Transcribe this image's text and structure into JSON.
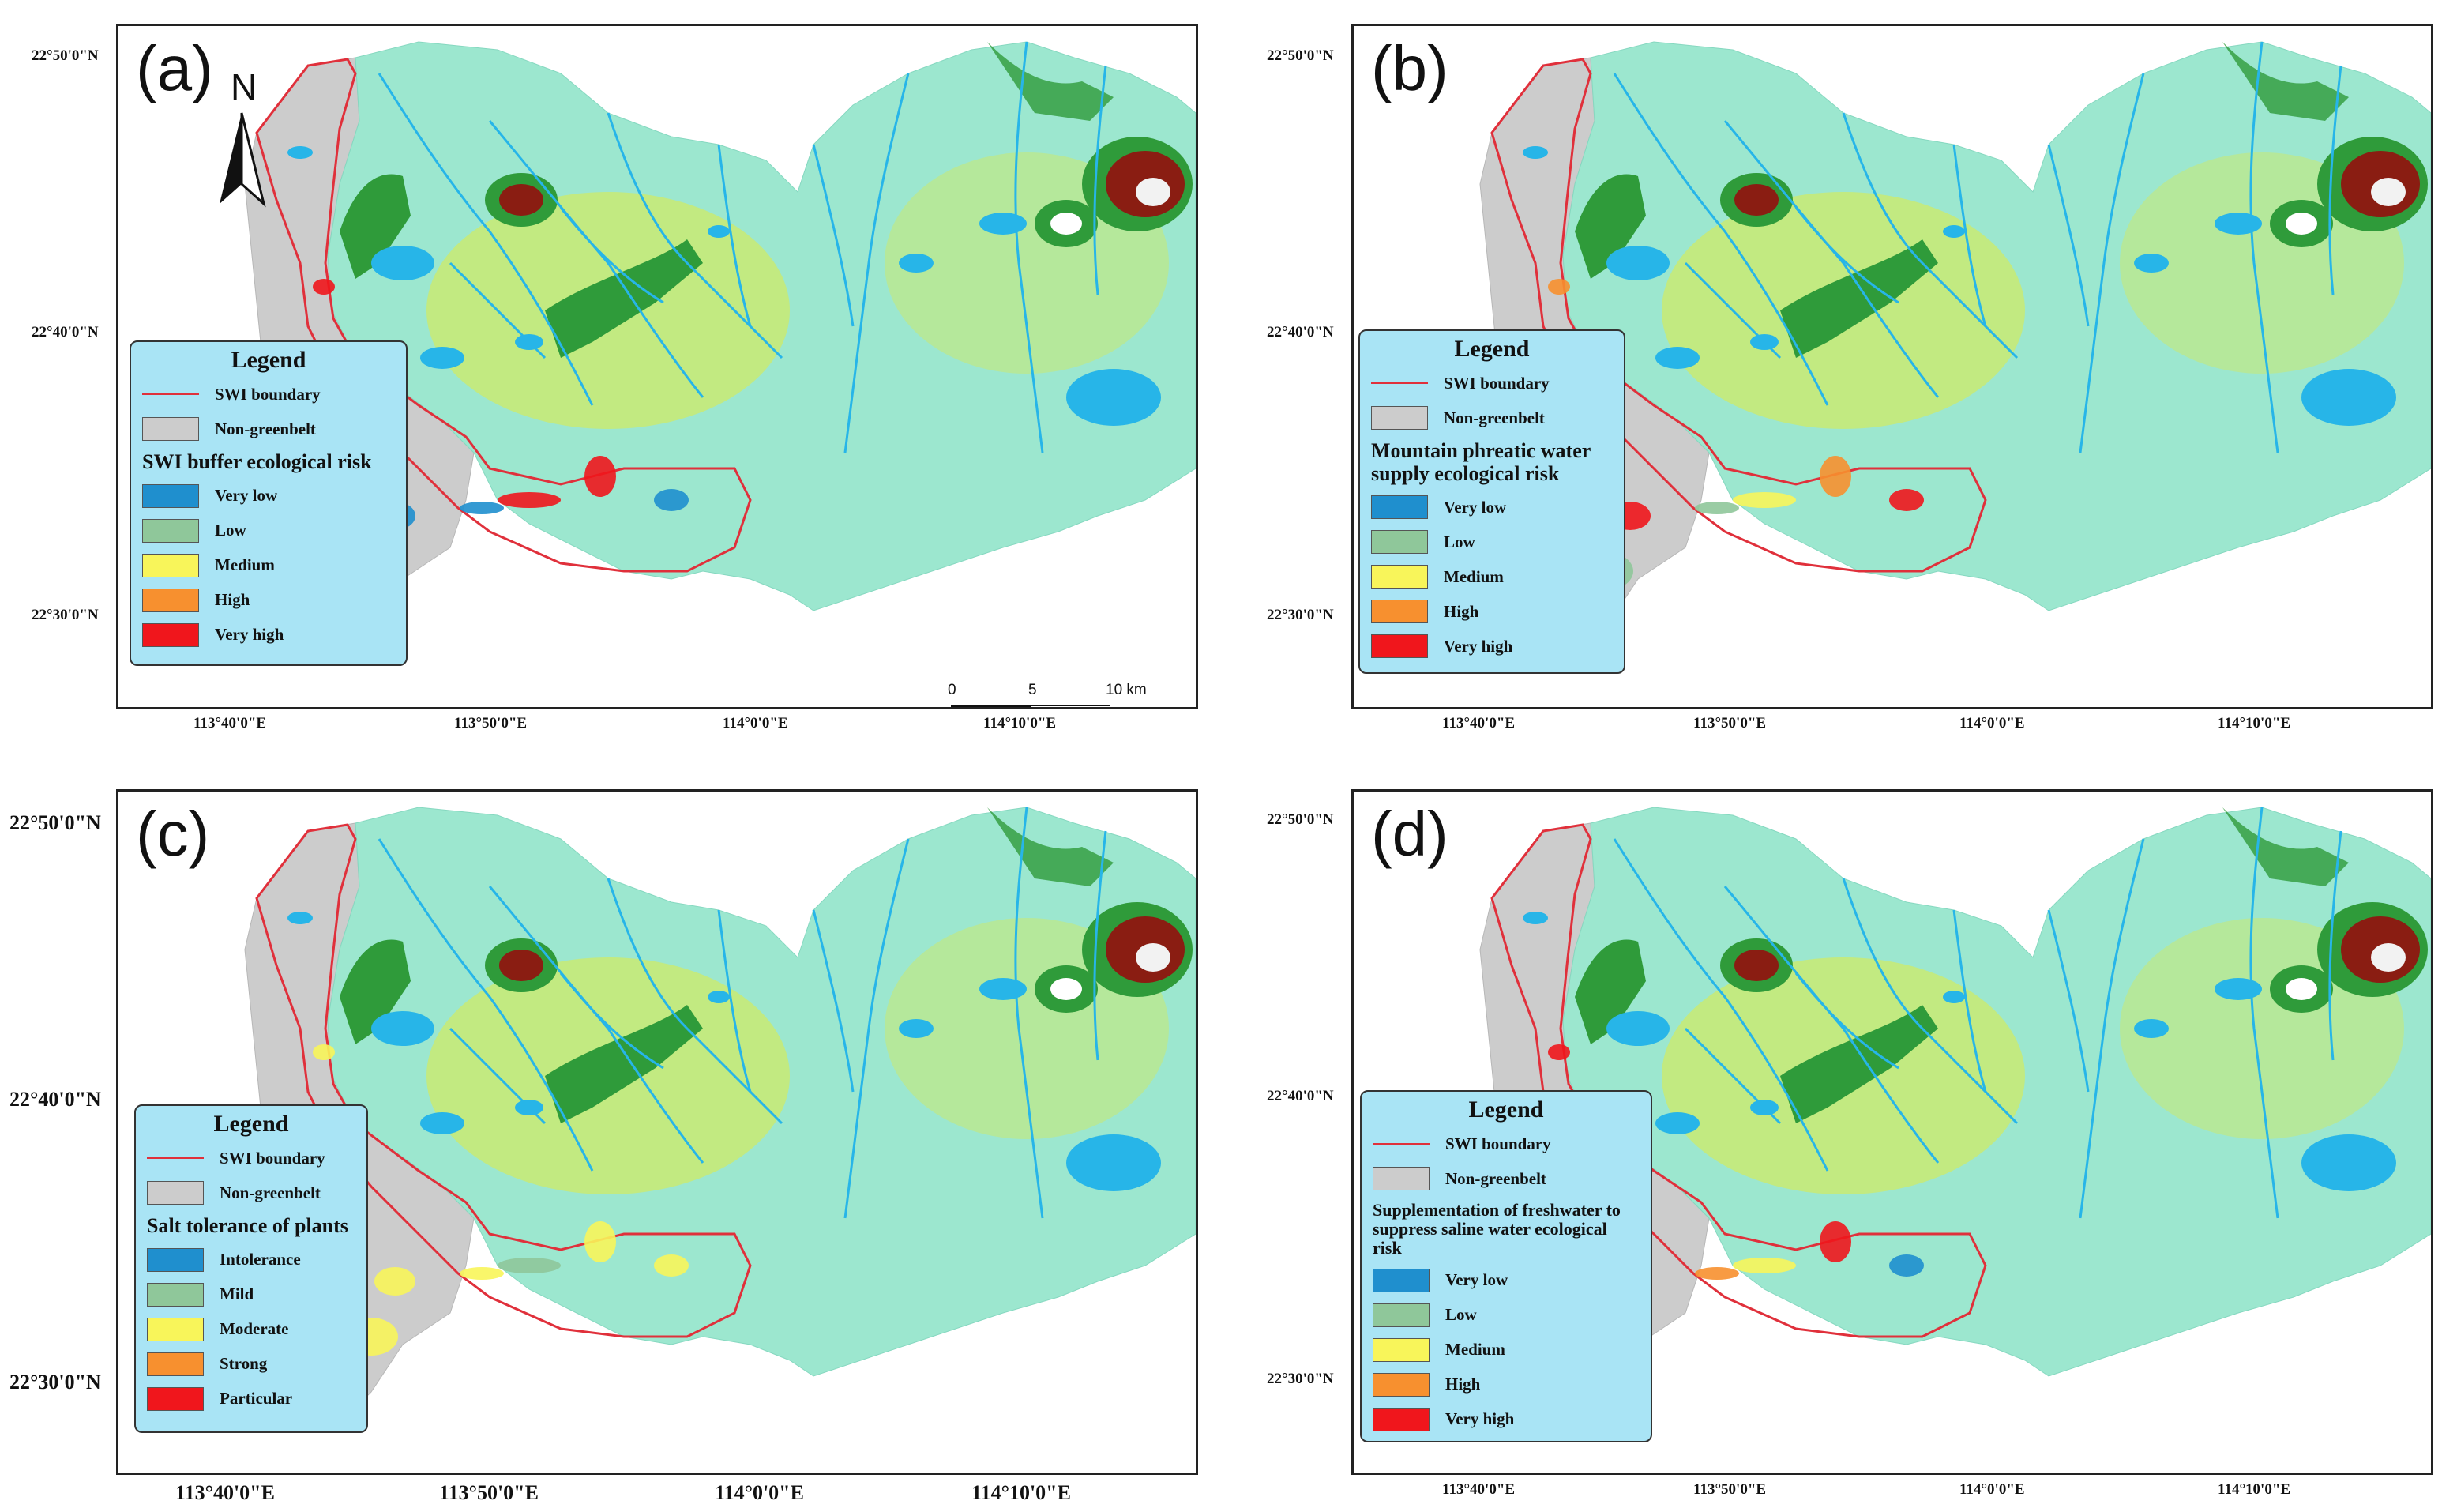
{
  "colors": {
    "frame": "#222222",
    "legend_bg": "#a9e4f5",
    "swi_boundary": "#e0303b",
    "non_greenbelt": "#cccccc",
    "very_low": "#1f8fce",
    "low": "#8fc79a",
    "medium": "#f8f55a",
    "high": "#f7902f",
    "very_high": "#f0161c",
    "water": "#27b5e8",
    "terrain_low": "#9ce7cf",
    "terrain_mid": "#c7ea78",
    "terrain_high": "#2f9b3a",
    "terrain_peak": "#8a1d12"
  },
  "axes": {
    "lat_ticks": [
      "22°50'0\"N",
      "22°40'0\"N",
      "22°30'0\"N"
    ],
    "lon_ticks": [
      "113°40'0\"E",
      "113°50'0\"E",
      "114°0'0\"E",
      "114°10'0\"E"
    ]
  },
  "north_arrow": {
    "label": "N",
    "icon": "north-arrow-icon"
  },
  "scale_bar": {
    "ticks": [
      "0",
      "5",
      "10 km"
    ]
  },
  "legend_common": {
    "title": "Legend",
    "boundary_label": "SWI boundary",
    "non_greenbelt_label": "Non-greenbelt"
  },
  "panels": [
    {
      "label": "(a)",
      "legend_heading": "SWI buffer ecological risk",
      "classes": [
        "Very low",
        "Low",
        "Medium",
        "High",
        "Very high"
      ]
    },
    {
      "label": "(b)",
      "legend_heading": "Mountain phreatic water supply ecological risk",
      "classes": [
        "Very low",
        "Low",
        "Medium",
        "High",
        "Very high"
      ]
    },
    {
      "label": "(c)",
      "legend_heading": "Salt tolerance of plants",
      "classes": [
        "Intolerance",
        "Mild",
        "Moderate",
        "Strong",
        "Particular"
      ]
    },
    {
      "label": "(d)",
      "legend_heading": "Supplementation of freshwater to suppress saline water ecological risk",
      "classes": [
        "Very low",
        "Low",
        "Medium",
        "High",
        "Very high"
      ]
    }
  ]
}
